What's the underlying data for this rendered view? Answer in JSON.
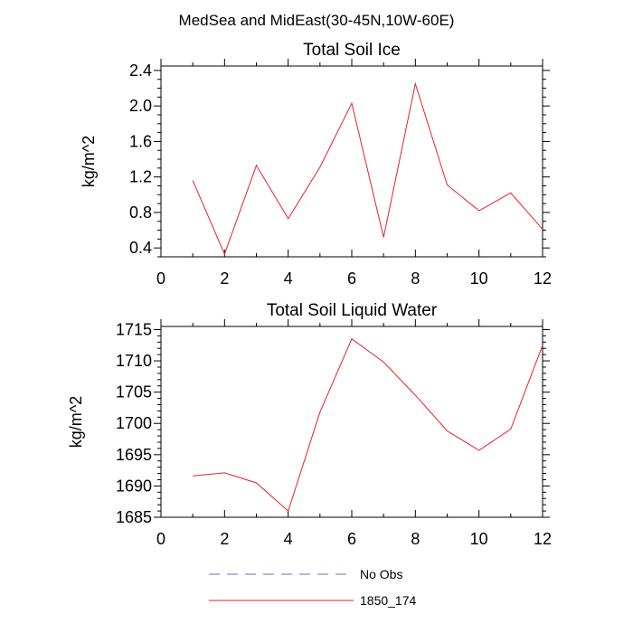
{
  "figure": {
    "suptitle": "MedSea and MidEast(30-45N,10W-60E)"
  },
  "legend": {
    "items": [
      {
        "label": "No Obs",
        "color": "#6f6fb0",
        "style": "dashed"
      },
      {
        "label": "1850_174",
        "color": "#e8202a",
        "style": "solid"
      }
    ]
  },
  "chart_data": [
    {
      "type": "line",
      "title": "Total Soil Ice",
      "ylabel": "kg/m^2",
      "xlabel": "",
      "xlim": [
        0,
        12
      ],
      "ylim": [
        0.3,
        2.45
      ],
      "x_ticks": [
        0,
        2,
        4,
        6,
        8,
        10,
        12
      ],
      "x_tick_labels": [
        "0",
        "2",
        "4",
        "6",
        "8",
        "10",
        "12"
      ],
      "y_ticks": [
        0.4,
        0.8,
        1.2,
        1.6,
        2.0,
        2.4
      ],
      "y_tick_labels": [
        "0.4",
        "0.8",
        "1.2",
        "1.6",
        "2.0",
        "2.4"
      ],
      "y_minor_step": 0.1,
      "grid": false,
      "series": [
        {
          "name": "1850_174",
          "color": "#e8202a",
          "x": [
            1,
            2,
            3,
            4,
            5,
            6,
            7,
            8,
            9,
            10,
            11,
            12
          ],
          "values": [
            1.16,
            0.33,
            1.33,
            0.73,
            1.31,
            2.03,
            0.52,
            2.25,
            1.11,
            0.82,
            1.02,
            0.61
          ]
        }
      ]
    },
    {
      "type": "line",
      "title": "Total Soil Liquid Water",
      "ylabel": "kg/m^2",
      "xlabel": "",
      "xlim": [
        0,
        12
      ],
      "ylim": [
        1685,
        1715.5
      ],
      "x_ticks": [
        0,
        2,
        4,
        6,
        8,
        10,
        12
      ],
      "x_tick_labels": [
        "0",
        "2",
        "4",
        "6",
        "8",
        "10",
        "12"
      ],
      "y_ticks": [
        1685,
        1690,
        1695,
        1700,
        1705,
        1710,
        1715
      ],
      "y_tick_labels": [
        "1685",
        "1690",
        "1695",
        "1700",
        "1705",
        "1710",
        "1715"
      ],
      "y_minor_step": 1,
      "grid": false,
      "series": [
        {
          "name": "1850_174",
          "color": "#e8202a",
          "x": [
            1,
            2,
            3,
            4,
            5,
            6,
            7,
            8,
            9,
            10,
            11,
            12
          ],
          "values": [
            1691.6,
            1692.1,
            1690.5,
            1686.0,
            1701.8,
            1713.5,
            1709.8,
            1704.5,
            1698.8,
            1695.7,
            1699.1,
            1712.5
          ]
        }
      ]
    }
  ]
}
